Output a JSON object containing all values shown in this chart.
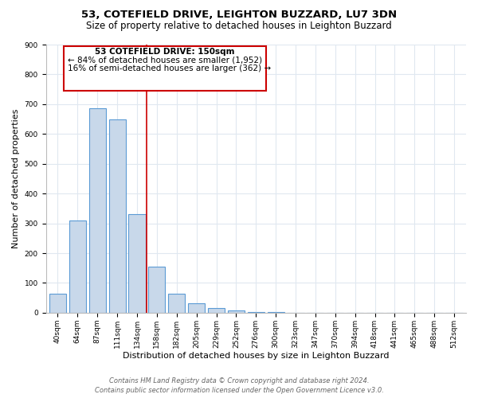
{
  "title": "53, COTEFIELD DRIVE, LEIGHTON BUZZARD, LU7 3DN",
  "subtitle": "Size of property relative to detached houses in Leighton Buzzard",
  "xlabel": "Distribution of detached houses by size in Leighton Buzzard",
  "ylabel": "Number of detached properties",
  "bar_labels": [
    "40sqm",
    "64sqm",
    "87sqm",
    "111sqm",
    "134sqm",
    "158sqm",
    "182sqm",
    "205sqm",
    "229sqm",
    "252sqm",
    "276sqm",
    "300sqm",
    "323sqm",
    "347sqm",
    "370sqm",
    "394sqm",
    "418sqm",
    "441sqm",
    "465sqm",
    "488sqm",
    "512sqm"
  ],
  "bar_values": [
    63,
    310,
    685,
    650,
    330,
    155,
    65,
    33,
    15,
    7,
    3,
    2,
    1,
    1,
    0,
    0,
    0,
    0,
    1,
    0,
    1
  ],
  "bar_color": "#c8d8ea",
  "bar_edge_color": "#5b9bd5",
  "annotation_text_line1": "53 COTEFIELD DRIVE: 150sqm",
  "annotation_text_line2": "← 84% of detached houses are smaller (1,952)",
  "annotation_text_line3": "16% of semi-detached houses are larger (362) →",
  "annotation_box_color": "#cc0000",
  "vline_color": "#cc0000",
  "vline_x": 4.5,
  "ylim": [
    0,
    900
  ],
  "yticks": [
    0,
    100,
    200,
    300,
    400,
    500,
    600,
    700,
    800,
    900
  ],
  "footer_line1": "Contains HM Land Registry data © Crown copyright and database right 2024.",
  "footer_line2": "Contains public sector information licensed under the Open Government Licence v3.0.",
  "title_fontsize": 9.5,
  "subtitle_fontsize": 8.5,
  "xlabel_fontsize": 8,
  "ylabel_fontsize": 8,
  "tick_fontsize": 6.5,
  "annotation_fontsize": 7.5,
  "footer_fontsize": 6,
  "bg_color": "#ffffff",
  "plot_bg_color": "#ffffff",
  "grid_color": "#e0e8f0"
}
